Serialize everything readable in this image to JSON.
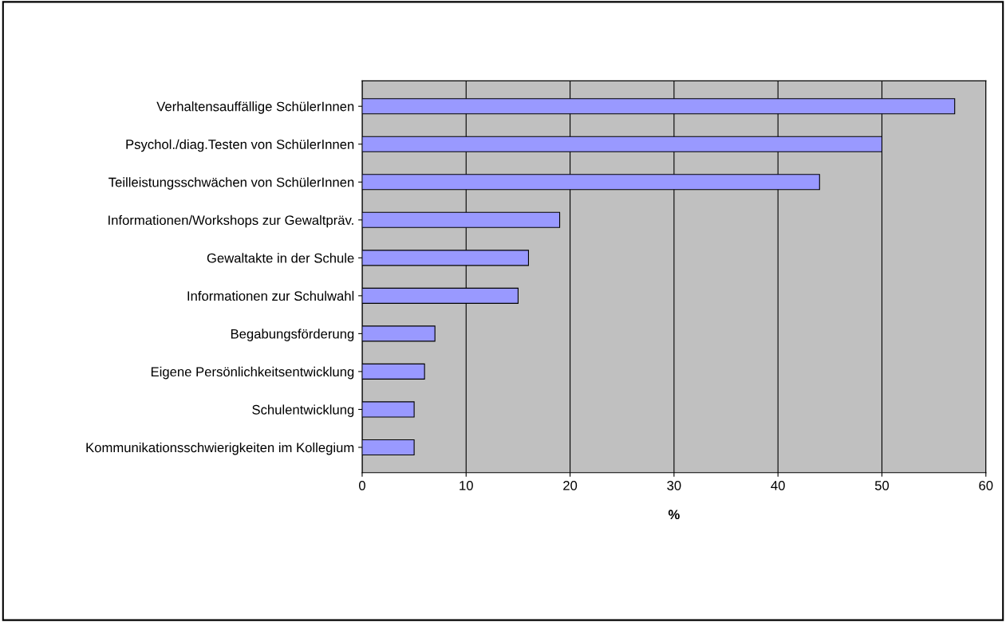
{
  "chart_data": {
    "type": "bar",
    "orientation": "horizontal",
    "xlabel": "%",
    "categories": [
      "Verhaltensauffällige SchülerInnen",
      "Psychol./diag.Testen von SchülerInnen",
      "Teilleistungsschwächen von SchülerInnen",
      "Informationen/Workshops zur Gewaltpräv.",
      "Gewaltakte in der Schule",
      "Informationen zur Schulwahl",
      "Begabungsförderung",
      "Eigene Persönlichkeitsentwicklung",
      "Schulentwicklung",
      "Kommunikationsschwierigkeiten im Kollegium"
    ],
    "values": [
      57,
      50,
      44,
      19,
      16,
      15,
      7,
      6,
      5,
      5
    ],
    "color": "#9999ff",
    "xlim": [
      0,
      60
    ],
    "xticks": [
      0,
      10,
      20,
      30,
      40,
      50,
      60
    ],
    "grid": "x",
    "legend": false
  }
}
